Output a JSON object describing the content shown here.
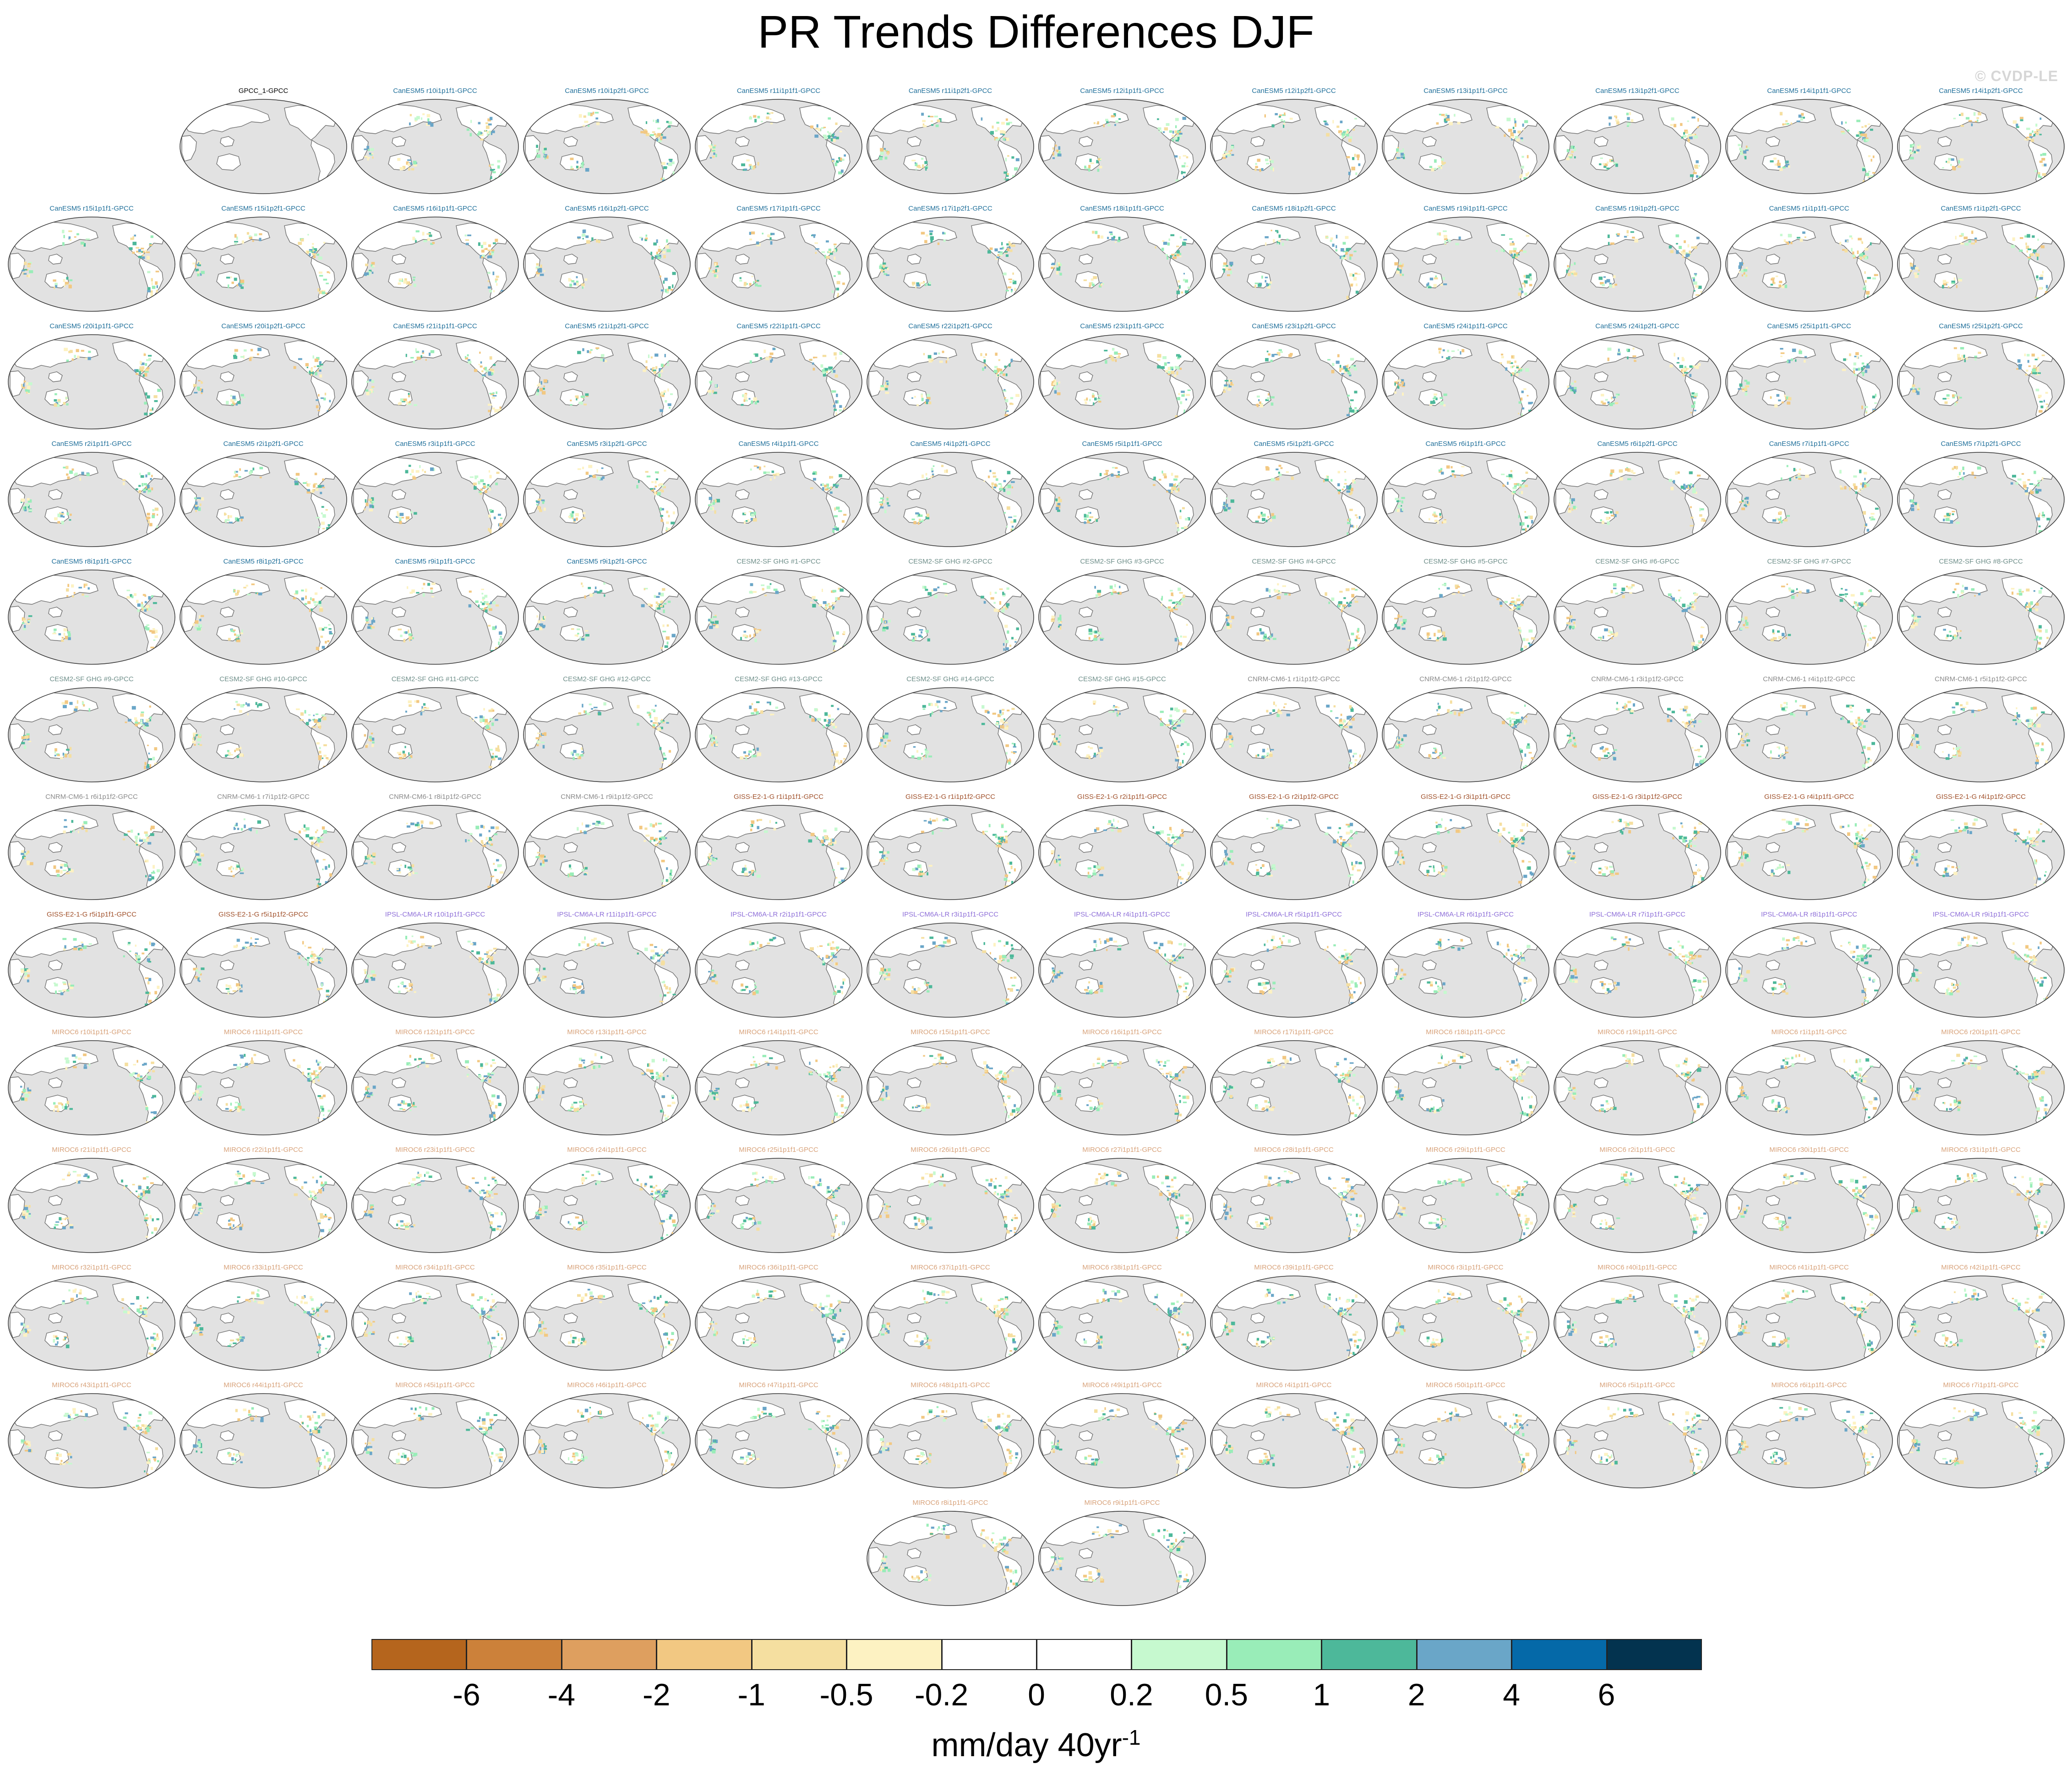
{
  "title": "PR Trends Differences DJF",
  "watermark": "© CVDP-LE",
  "colors": {
    "ocean": "#e2e2e2",
    "land_outline": "#707070",
    "label_obs": "#000000",
    "label_CanESM5": "#1f6f9a",
    "label_CESM2": "#6f8f8a",
    "label_CNRM": "#8a8a8a",
    "label_GISS": "#a0502a",
    "label_IPSL": "#8e6fd8",
    "label_MIROC6": "#d8a27a"
  },
  "panels": [
    {
      "label": "GPCC_1-GPCC",
      "model": "obs"
    },
    {
      "label": "CanESM5 r10i1p1f1-GPCC",
      "model": "CanESM5"
    },
    {
      "label": "CanESM5 r10i1p2f1-GPCC",
      "model": "CanESM5"
    },
    {
      "label": "CanESM5 r11i1p1f1-GPCC",
      "model": "CanESM5"
    },
    {
      "label": "CanESM5 r11i1p2f1-GPCC",
      "model": "CanESM5"
    },
    {
      "label": "CanESM5 r12i1p1f1-GPCC",
      "model": "CanESM5"
    },
    {
      "label": "CanESM5 r12i1p2f1-GPCC",
      "model": "CanESM5"
    },
    {
      "label": "CanESM5 r13i1p1f1-GPCC",
      "model": "CanESM5"
    },
    {
      "label": "CanESM5 r13i1p2f1-GPCC",
      "model": "CanESM5"
    },
    {
      "label": "CanESM5 r14i1p1f1-GPCC",
      "model": "CanESM5"
    },
    {
      "label": "CanESM5 r14i1p2f1-GPCC",
      "model": "CanESM5"
    },
    {
      "label": "CanESM5 r15i1p1f1-GPCC",
      "model": "CanESM5"
    },
    {
      "label": "CanESM5 r15i1p2f1-GPCC",
      "model": "CanESM5"
    },
    {
      "label": "CanESM5 r16i1p1f1-GPCC",
      "model": "CanESM5"
    },
    {
      "label": "CanESM5 r16i1p2f1-GPCC",
      "model": "CanESM5"
    },
    {
      "label": "CanESM5 r17i1p1f1-GPCC",
      "model": "CanESM5"
    },
    {
      "label": "CanESM5 r17i1p2f1-GPCC",
      "model": "CanESM5"
    },
    {
      "label": "CanESM5 r18i1p1f1-GPCC",
      "model": "CanESM5"
    },
    {
      "label": "CanESM5 r18i1p2f1-GPCC",
      "model": "CanESM5"
    },
    {
      "label": "CanESM5 r19i1p1f1-GPCC",
      "model": "CanESM5"
    },
    {
      "label": "CanESM5 r19i1p2f1-GPCC",
      "model": "CanESM5"
    },
    {
      "label": "CanESM5 r1i1p1f1-GPCC",
      "model": "CanESM5"
    },
    {
      "label": "CanESM5 r1i1p2f1-GPCC",
      "model": "CanESM5"
    },
    {
      "label": "CanESM5 r20i1p1f1-GPCC",
      "model": "CanESM5"
    },
    {
      "label": "CanESM5 r20i1p2f1-GPCC",
      "model": "CanESM5"
    },
    {
      "label": "CanESM5 r21i1p1f1-GPCC",
      "model": "CanESM5"
    },
    {
      "label": "CanESM5 r21i1p2f1-GPCC",
      "model": "CanESM5"
    },
    {
      "label": "CanESM5 r22i1p1f1-GPCC",
      "model": "CanESM5"
    },
    {
      "label": "CanESM5 r22i1p2f1-GPCC",
      "model": "CanESM5"
    },
    {
      "label": "CanESM5 r23i1p1f1-GPCC",
      "model": "CanESM5"
    },
    {
      "label": "CanESM5 r23i1p2f1-GPCC",
      "model": "CanESM5"
    },
    {
      "label": "CanESM5 r24i1p1f1-GPCC",
      "model": "CanESM5"
    },
    {
      "label": "CanESM5 r24i1p2f1-GPCC",
      "model": "CanESM5"
    },
    {
      "label": "CanESM5 r25i1p1f1-GPCC",
      "model": "CanESM5"
    },
    {
      "label": "CanESM5 r25i1p2f1-GPCC",
      "model": "CanESM5"
    },
    {
      "label": "CanESM5 r2i1p1f1-GPCC",
      "model": "CanESM5"
    },
    {
      "label": "CanESM5 r2i1p2f1-GPCC",
      "model": "CanESM5"
    },
    {
      "label": "CanESM5 r3i1p1f1-GPCC",
      "model": "CanESM5"
    },
    {
      "label": "CanESM5 r3i1p2f1-GPCC",
      "model": "CanESM5"
    },
    {
      "label": "CanESM5 r4i1p1f1-GPCC",
      "model": "CanESM5"
    },
    {
      "label": "CanESM5 r4i1p2f1-GPCC",
      "model": "CanESM5"
    },
    {
      "label": "CanESM5 r5i1p1f1-GPCC",
      "model": "CanESM5"
    },
    {
      "label": "CanESM5 r5i1p2f1-GPCC",
      "model": "CanESM5"
    },
    {
      "label": "CanESM5 r6i1p1f1-GPCC",
      "model": "CanESM5"
    },
    {
      "label": "CanESM5 r6i1p2f1-GPCC",
      "model": "CanESM5"
    },
    {
      "label": "CanESM5 r7i1p1f1-GPCC",
      "model": "CanESM5"
    },
    {
      "label": "CanESM5 r7i1p2f1-GPCC",
      "model": "CanESM5"
    },
    {
      "label": "CanESM5 r8i1p1f1-GPCC",
      "model": "CanESM5"
    },
    {
      "label": "CanESM5 r8i1p2f1-GPCC",
      "model": "CanESM5"
    },
    {
      "label": "CanESM5 r9i1p1f1-GPCC",
      "model": "CanESM5"
    },
    {
      "label": "CanESM5 r9i1p2f1-GPCC",
      "model": "CanESM5"
    },
    {
      "label": "CESM2-SF GHG #1-GPCC",
      "model": "CESM2"
    },
    {
      "label": "CESM2-SF GHG #2-GPCC",
      "model": "CESM2"
    },
    {
      "label": "CESM2-SF GHG #3-GPCC",
      "model": "CESM2"
    },
    {
      "label": "CESM2-SF GHG #4-GPCC",
      "model": "CESM2"
    },
    {
      "label": "CESM2-SF GHG #5-GPCC",
      "model": "CESM2"
    },
    {
      "label": "CESM2-SF GHG #6-GPCC",
      "model": "CESM2"
    },
    {
      "label": "CESM2-SF GHG #7-GPCC",
      "model": "CESM2"
    },
    {
      "label": "CESM2-SF GHG #8-GPCC",
      "model": "CESM2"
    },
    {
      "label": "CESM2-SF GHG #9-GPCC",
      "model": "CESM2"
    },
    {
      "label": "CESM2-SF GHG #10-GPCC",
      "model": "CESM2"
    },
    {
      "label": "CESM2-SF GHG #11-GPCC",
      "model": "CESM2"
    },
    {
      "label": "CESM2-SF GHG #12-GPCC",
      "model": "CESM2"
    },
    {
      "label": "CESM2-SF GHG #13-GPCC",
      "model": "CESM2"
    },
    {
      "label": "CESM2-SF GHG #14-GPCC",
      "model": "CESM2"
    },
    {
      "label": "CESM2-SF GHG #15-GPCC",
      "model": "CESM2"
    },
    {
      "label": "CNRM-CM6-1 r1i1p1f2-GPCC",
      "model": "CNRM"
    },
    {
      "label": "CNRM-CM6-1 r2i1p1f2-GPCC",
      "model": "CNRM"
    },
    {
      "label": "CNRM-CM6-1 r3i1p1f2-GPCC",
      "model": "CNRM"
    },
    {
      "label": "CNRM-CM6-1 r4i1p1f2-GPCC",
      "model": "CNRM"
    },
    {
      "label": "CNRM-CM6-1 r5i1p1f2-GPCC",
      "model": "CNRM"
    },
    {
      "label": "CNRM-CM6-1 r6i1p1f2-GPCC",
      "model": "CNRM"
    },
    {
      "label": "CNRM-CM6-1 r7i1p1f2-GPCC",
      "model": "CNRM"
    },
    {
      "label": "CNRM-CM6-1 r8i1p1f2-GPCC",
      "model": "CNRM"
    },
    {
      "label": "CNRM-CM6-1 r9i1p1f2-GPCC",
      "model": "CNRM"
    },
    {
      "label": "GISS-E2-1-G r1i1p1f1-GPCC",
      "model": "GISS"
    },
    {
      "label": "GISS-E2-1-G r1i1p1f2-GPCC",
      "model": "GISS"
    },
    {
      "label": "GISS-E2-1-G r2i1p1f1-GPCC",
      "model": "GISS"
    },
    {
      "label": "GISS-E2-1-G r2i1p1f2-GPCC",
      "model": "GISS"
    },
    {
      "label": "GISS-E2-1-G r3i1p1f1-GPCC",
      "model": "GISS"
    },
    {
      "label": "GISS-E2-1-G r3i1p1f2-GPCC",
      "model": "GISS"
    },
    {
      "label": "GISS-E2-1-G r4i1p1f1-GPCC",
      "model": "GISS"
    },
    {
      "label": "GISS-E2-1-G r4i1p1f2-GPCC",
      "model": "GISS"
    },
    {
      "label": "GISS-E2-1-G r5i1p1f1-GPCC",
      "model": "GISS"
    },
    {
      "label": "GISS-E2-1-G r5i1p1f2-GPCC",
      "model": "GISS"
    },
    {
      "label": "IPSL-CM6A-LR r10i1p1f1-GPCC",
      "model": "IPSL"
    },
    {
      "label": "IPSL-CM6A-LR r11i1p1f1-GPCC",
      "model": "IPSL"
    },
    {
      "label": "IPSL-CM6A-LR r2i1p1f1-GPCC",
      "model": "IPSL"
    },
    {
      "label": "IPSL-CM6A-LR r3i1p1f1-GPCC",
      "model": "IPSL"
    },
    {
      "label": "IPSL-CM6A-LR r4i1p1f1-GPCC",
      "model": "IPSL"
    },
    {
      "label": "IPSL-CM6A-LR r5i1p1f1-GPCC",
      "model": "IPSL"
    },
    {
      "label": "IPSL-CM6A-LR r6i1p1f1-GPCC",
      "model": "IPSL"
    },
    {
      "label": "IPSL-CM6A-LR r7i1p1f1-GPCC",
      "model": "IPSL"
    },
    {
      "label": "IPSL-CM6A-LR r8i1p1f1-GPCC",
      "model": "IPSL"
    },
    {
      "label": "IPSL-CM6A-LR r9i1p1f1-GPCC",
      "model": "IPSL"
    },
    {
      "label": "MIROC6 r10i1p1f1-GPCC",
      "model": "MIROC6"
    },
    {
      "label": "MIROC6 r11i1p1f1-GPCC",
      "model": "MIROC6"
    },
    {
      "label": "MIROC6 r12i1p1f1-GPCC",
      "model": "MIROC6"
    },
    {
      "label": "MIROC6 r13i1p1f1-GPCC",
      "model": "MIROC6"
    },
    {
      "label": "MIROC6 r14i1p1f1-GPCC",
      "model": "MIROC6"
    },
    {
      "label": "MIROC6 r15i1p1f1-GPCC",
      "model": "MIROC6"
    },
    {
      "label": "MIROC6 r16i1p1f1-GPCC",
      "model": "MIROC6"
    },
    {
      "label": "MIROC6 r17i1p1f1-GPCC",
      "model": "MIROC6"
    },
    {
      "label": "MIROC6 r18i1p1f1-GPCC",
      "model": "MIROC6"
    },
    {
      "label": "MIROC6 r19i1p1f1-GPCC",
      "model": "MIROC6"
    },
    {
      "label": "MIROC6 r1i1p1f1-GPCC",
      "model": "MIROC6"
    },
    {
      "label": "MIROC6 r20i1p1f1-GPCC",
      "model": "MIROC6"
    },
    {
      "label": "MIROC6 r21i1p1f1-GPCC",
      "model": "MIROC6"
    },
    {
      "label": "MIROC6 r22i1p1f1-GPCC",
      "model": "MIROC6"
    },
    {
      "label": "MIROC6 r23i1p1f1-GPCC",
      "model": "MIROC6"
    },
    {
      "label": "MIROC6 r24i1p1f1-GPCC",
      "model": "MIROC6"
    },
    {
      "label": "MIROC6 r25i1p1f1-GPCC",
      "model": "MIROC6"
    },
    {
      "label": "MIROC6 r26i1p1f1-GPCC",
      "model": "MIROC6"
    },
    {
      "label": "MIROC6 r27i1p1f1-GPCC",
      "model": "MIROC6"
    },
    {
      "label": "MIROC6 r28i1p1f1-GPCC",
      "model": "MIROC6"
    },
    {
      "label": "MIROC6 r29i1p1f1-GPCC",
      "model": "MIROC6"
    },
    {
      "label": "MIROC6 r2i1p1f1-GPCC",
      "model": "MIROC6"
    },
    {
      "label": "MIROC6 r30i1p1f1-GPCC",
      "model": "MIROC6"
    },
    {
      "label": "MIROC6 r31i1p1f1-GPCC",
      "model": "MIROC6"
    },
    {
      "label": "MIROC6 r32i1p1f1-GPCC",
      "model": "MIROC6"
    },
    {
      "label": "MIROC6 r33i1p1f1-GPCC",
      "model": "MIROC6"
    },
    {
      "label": "MIROC6 r34i1p1f1-GPCC",
      "model": "MIROC6"
    },
    {
      "label": "MIROC6 r35i1p1f1-GPCC",
      "model": "MIROC6"
    },
    {
      "label": "MIROC6 r36i1p1f1-GPCC",
      "model": "MIROC6"
    },
    {
      "label": "MIROC6 r37i1p1f1-GPCC",
      "model": "MIROC6"
    },
    {
      "label": "MIROC6 r38i1p1f1-GPCC",
      "model": "MIROC6"
    },
    {
      "label": "MIROC6 r39i1p1f1-GPCC",
      "model": "MIROC6"
    },
    {
      "label": "MIROC6 r3i1p1f1-GPCC",
      "model": "MIROC6"
    },
    {
      "label": "MIROC6 r40i1p1f1-GPCC",
      "model": "MIROC6"
    },
    {
      "label": "MIROC6 r41i1p1f1-GPCC",
      "model": "MIROC6"
    },
    {
      "label": "MIROC6 r42i1p1f1-GPCC",
      "model": "MIROC6"
    },
    {
      "label": "MIROC6 r43i1p1f1-GPCC",
      "model": "MIROC6"
    },
    {
      "label": "MIROC6 r44i1p1f1-GPCC",
      "model": "MIROC6"
    },
    {
      "label": "MIROC6 r45i1p1f1-GPCC",
      "model": "MIROC6"
    },
    {
      "label": "MIROC6 r46i1p1f1-GPCC",
      "model": "MIROC6"
    },
    {
      "label": "MIROC6 r47i1p1f1-GPCC",
      "model": "MIROC6"
    },
    {
      "label": "MIROC6 r48i1p1f1-GPCC",
      "model": "MIROC6"
    },
    {
      "label": "MIROC6 r49i1p1f1-GPCC",
      "model": "MIROC6"
    },
    {
      "label": "MIROC6 r4i1p1f1-GPCC",
      "model": "MIROC6"
    },
    {
      "label": "MIROC6 r50i1p1f1-GPCC",
      "model": "MIROC6"
    },
    {
      "label": "MIROC6 r5i1p1f1-GPCC",
      "model": "MIROC6"
    },
    {
      "label": "MIROC6 r6i1p1f1-GPCC",
      "model": "MIROC6"
    },
    {
      "label": "MIROC6 r7i1p1f1-GPCC",
      "model": "MIROC6"
    },
    {
      "label": "MIROC6 r8i1p1f1-GPCC",
      "model": "MIROC6"
    },
    {
      "label": "MIROC6 r9i1p1f1-GPCC",
      "model": "MIROC6"
    }
  ],
  "colorbar": {
    "units_text": "mm/day 40yr",
    "units_exponent": "-1",
    "ticks": [
      "-6",
      "-4",
      "-2",
      "-1",
      "-0.5",
      "-0.2",
      "0",
      "0.2",
      "0.5",
      "1",
      "2",
      "4",
      "6"
    ],
    "colors": [
      "#b5651d",
      "#cc813a",
      "#de9f5f",
      "#f2c882",
      "#f5dfa0",
      "#fdf2c2",
      "#ffffff",
      "#ffffff",
      "#c6f9cf",
      "#99edb8",
      "#4db89a",
      "#6aa6c8",
      "#0569a8",
      "#03334f"
    ]
  }
}
